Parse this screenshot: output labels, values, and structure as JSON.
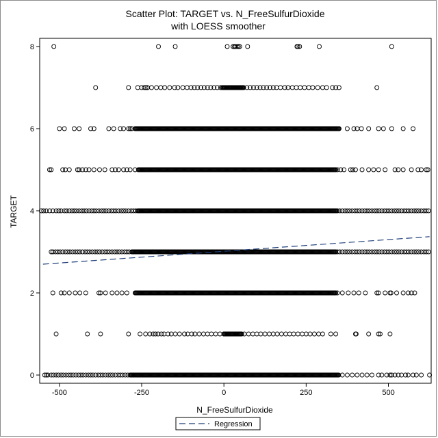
{
  "chart_data": {
    "type": "scatter",
    "title": "Scatter Plot: TARGET vs. N_FreeSulfurDioxide",
    "subtitle": "with LOESS smoother",
    "xlabel": "N_FreeSulfurDioxide",
    "ylabel": "TARGET",
    "xlim": [
      -560,
      630
    ],
    "ylim": [
      -0.2,
      8.2
    ],
    "xticks": [
      -500,
      -250,
      0,
      250,
      500
    ],
    "xtick_labels": [
      "-500",
      "-250",
      "0",
      "250",
      "500"
    ],
    "yticks": [
      0,
      2,
      4,
      6,
      8
    ],
    "ytick_labels": [
      "0",
      "2",
      "4",
      "6",
      "8"
    ],
    "grid": false,
    "legend": {
      "placement": "bottom-center",
      "entries": [
        {
          "label": "Regression",
          "style": "dashed",
          "color": "#1f3f7a"
        }
      ]
    },
    "marker": {
      "shape": "open-circle",
      "color": "#000000"
    },
    "series": [
      {
        "type": "scatter",
        "rows": [
          {
            "y": 8,
            "x": [
              -517,
              -199,
              -148,
              10,
              28,
              32,
              35,
              40,
              44,
              48,
              72,
              222,
              225,
              230,
              290,
              510
            ]
          },
          {
            "y": 7,
            "x": [
              -390,
              -290,
              -262,
              -250,
              -242,
              -237,
              -232,
              -220,
              -205,
              -192,
              -180,
              -165,
              -150,
              -140,
              -125,
              -112,
              -100,
              -90,
              -80,
              -70,
              -60,
              -50,
              -40,
              -30,
              -20,
              -10,
              0,
              10,
              20,
              30,
              40,
              50,
              60,
              70,
              80,
              90,
              100,
              110,
              120,
              130,
              140,
              150,
              160,
              172,
              185,
              195,
              208,
              220,
              232,
              245,
              258,
              270,
              285,
              300,
              312,
              330,
              340,
              350,
              465
            ],
            "dense_ranges": [
              [
                -5,
                60
              ]
            ]
          },
          {
            "y": 6,
            "x": [
              -500,
              -485,
              -455,
              -440,
              -405,
              -395,
              -350,
              -335,
              -315,
              -305,
              -290,
              -285,
              -280,
              350,
              375,
              395,
              405,
              418,
              440,
              470,
              485,
              510,
              545,
              575
            ],
            "dense_ranges": [
              [
                -270,
                350
              ]
            ]
          },
          {
            "y": 5,
            "x": [
              -530,
              -525,
              -490,
              -482,
              -470,
              -445,
              -440,
              -430,
              -420,
              -410,
              -395,
              -378,
              -362,
              -340,
              -330,
              -320,
              -305,
              -295,
              -285,
              -270,
              345,
              355,
              365,
              385,
              392,
              400,
              420,
              440,
              455,
              470,
              490,
              520,
              530,
              545,
              570,
              590,
              600,
              615,
              620
            ],
            "dense_ranges": [
              [
                -260,
                340
              ]
            ]
          },
          {
            "y": 4,
            "x": [
              -555,
              -548,
              -540,
              -530,
              -520,
              -510,
              -502,
              -495,
              -485,
              -478,
              -470,
              -462,
              -455,
              -448,
              -440,
              -432,
              -425,
              -418,
              -410,
              -402,
              -395,
              -388,
              -380,
              -372,
              -365,
              -358,
              -350,
              -342,
              -335,
              -328,
              -320,
              -312,
              -305,
              -298,
              -290,
              -282,
              -275,
              -268,
              345,
              352,
              360,
              368,
              375,
              382,
              390,
              398,
              405,
              412,
              420,
              428,
              435,
              442,
              450,
              458,
              465,
              472,
              480,
              488,
              495,
              502,
              510,
              518,
              525,
              532,
              540,
              548,
              555,
              562,
              570,
              578,
              585,
              592,
              600,
              608,
              615,
              622
            ],
            "dense_ranges": [
              [
                -262,
                342
              ]
            ]
          },
          {
            "y": 3,
            "x": [
              -525,
              -520,
              -512,
              -505,
              -498,
              -490,
              -482,
              -475,
              -468,
              -460,
              -452,
              -445,
              -438,
              -430,
              -422,
              -415,
              -408,
              -400,
              -392,
              -385,
              -378,
              -370,
              -362,
              -355,
              -348,
              -340,
              -332,
              -325,
              -318,
              -310,
              -302,
              -295,
              -288,
              345,
              352,
              360,
              368,
              375,
              382,
              390,
              398,
              405,
              412,
              420,
              428,
              435,
              442,
              450,
              458,
              465,
              472,
              480,
              488,
              495,
              502,
              510,
              518,
              525,
              532,
              540,
              548,
              555,
              562,
              570,
              578,
              585,
              592,
              600,
              608,
              615,
              622
            ],
            "dense_ranges": [
              [
                -280,
                340
              ]
            ]
          },
          {
            "y": 2,
            "x": [
              -520,
              -495,
              -485,
              -470,
              -452,
              -438,
              -420,
              -380,
              -375,
              -360,
              -340,
              -325,
              -310,
              -295,
              345,
              360,
              378,
              395,
              410,
              430,
              465,
              470,
              490,
              505,
              508,
              525,
              545,
              560,
              570,
              580
            ],
            "dense_ranges": [
              [
                -270,
                340
              ]
            ]
          },
          {
            "y": 1,
            "x": [
              -510,
              -415,
              -375,
              -290,
              -255,
              -238,
              -225,
              -215,
              -208,
              -200,
              -190,
              -182,
              -170,
              -160,
              -148,
              -135,
              -120,
              -110,
              -98,
              -88,
              -75,
              -62,
              -50,
              -38,
              -25,
              -12,
              0,
              12,
              25,
              38,
              50,
              62,
              75,
              88,
              100,
              112,
              125,
              138,
              150,
              162,
              175,
              188,
              200,
              212,
              225,
              238,
              250,
              262,
              275,
              288,
              300,
              325,
              340,
              400,
              402,
              440,
              470,
              475,
              505
            ],
            "dense_ranges": [
              [
                0,
                55
              ]
            ]
          },
          {
            "y": 0,
            "x": [
              -545,
              -540,
              -535,
              -525,
              -518,
              -510,
              -503,
              -495,
              -488,
              -480,
              -472,
              -465,
              -458,
              -450,
              -442,
              -435,
              -428,
              -420,
              -412,
              -405,
              -398,
              -390,
              -382,
              -375,
              -368,
              -360,
              -352,
              -345,
              -338,
              -330,
              -322,
              -315,
              -308,
              -300,
              -292,
              360,
              375,
              390,
              405,
              420,
              435,
              450,
              470,
              480,
              495,
              505,
              510,
              520,
              530,
              540,
              552,
              560,
              575,
              585,
              600,
              625
            ],
            "dense_ranges": [
              [
                -285,
                350
              ]
            ]
          }
        ]
      },
      {
        "name": "Regression",
        "type": "line",
        "x": [
          -550,
          625
        ],
        "y": [
          2.7,
          3.37
        ]
      }
    ]
  }
}
